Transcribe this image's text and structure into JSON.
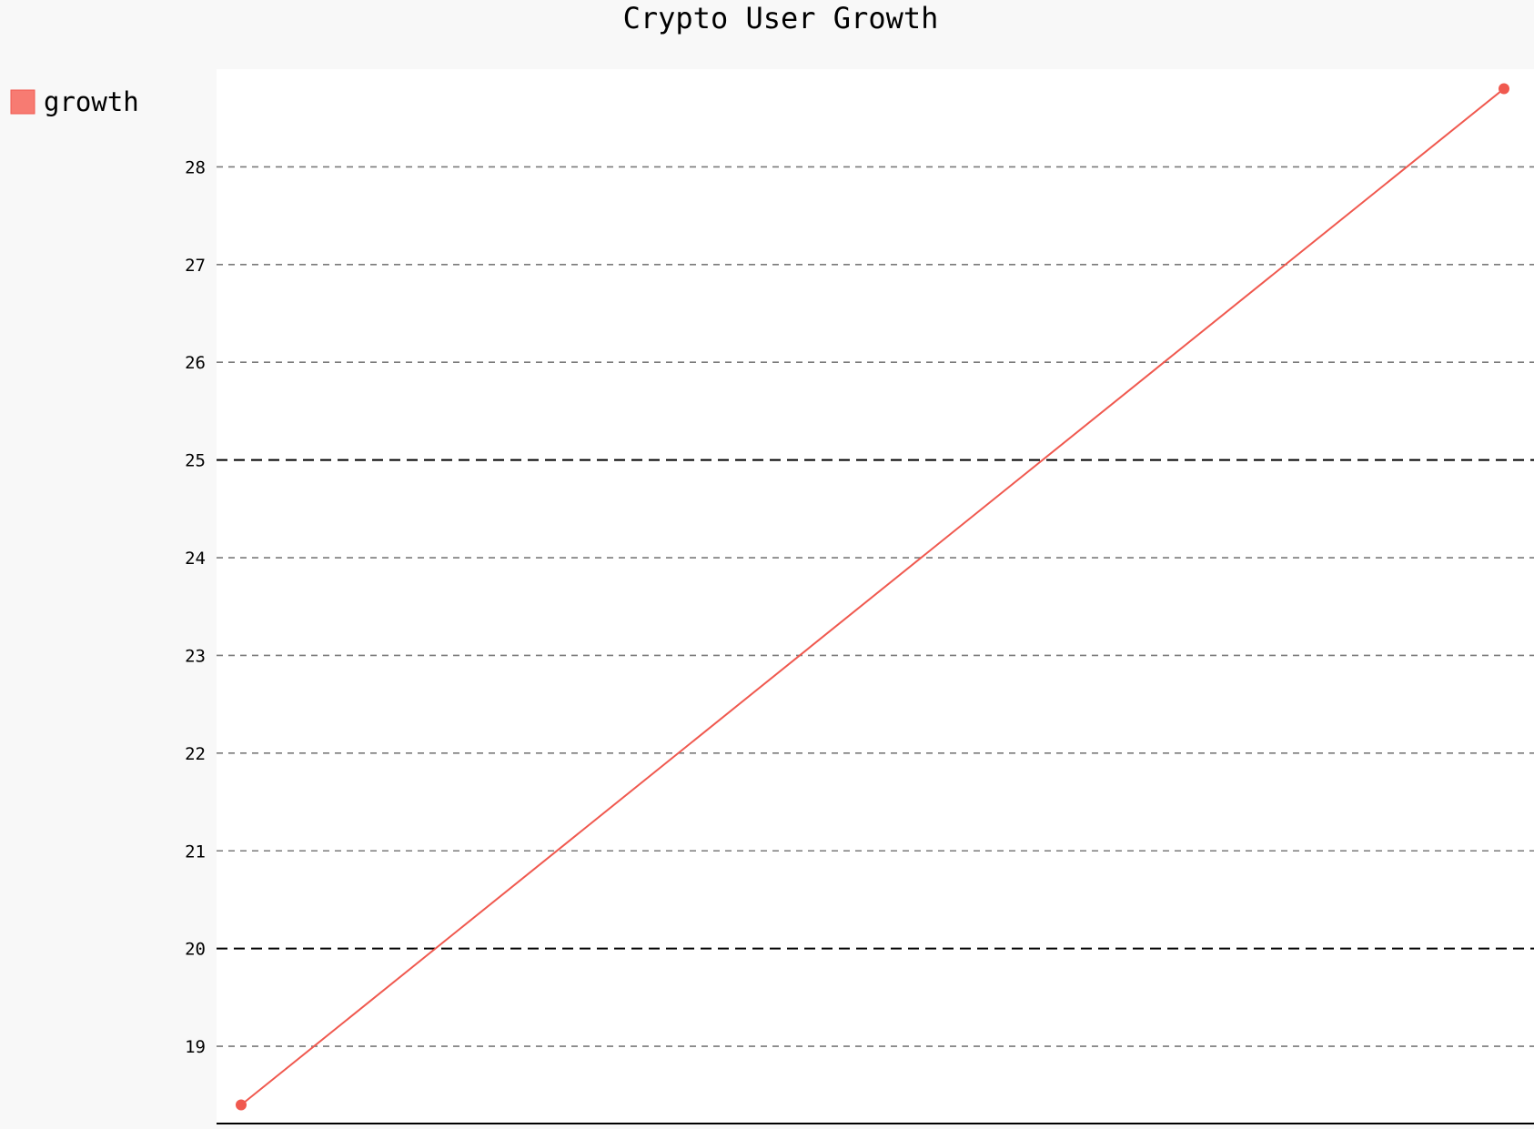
{
  "chart_data": {
    "type": "line",
    "title": "Crypto User Growth",
    "xlabel": "",
    "ylabel": "",
    "x": [
      0,
      1
    ],
    "series": [
      {
        "name": "growth",
        "values": [
          18.4,
          28.8
        ]
      }
    ],
    "ylim": [
      18.2,
      29.0
    ],
    "yticks": [
      19,
      20,
      21,
      22,
      23,
      24,
      25,
      26,
      27,
      28
    ],
    "major_yticks": [
      20,
      25
    ],
    "grid": true,
    "grid_style": "dashed",
    "legend_position": "top-left",
    "colors": {
      "background": "#f8f8f8",
      "plot_background": "#ffffff",
      "series": "#f0594f",
      "legend_swatch": "#f77b72",
      "grid_minor": "#7a7a7a",
      "grid_major": "#000000"
    }
  }
}
